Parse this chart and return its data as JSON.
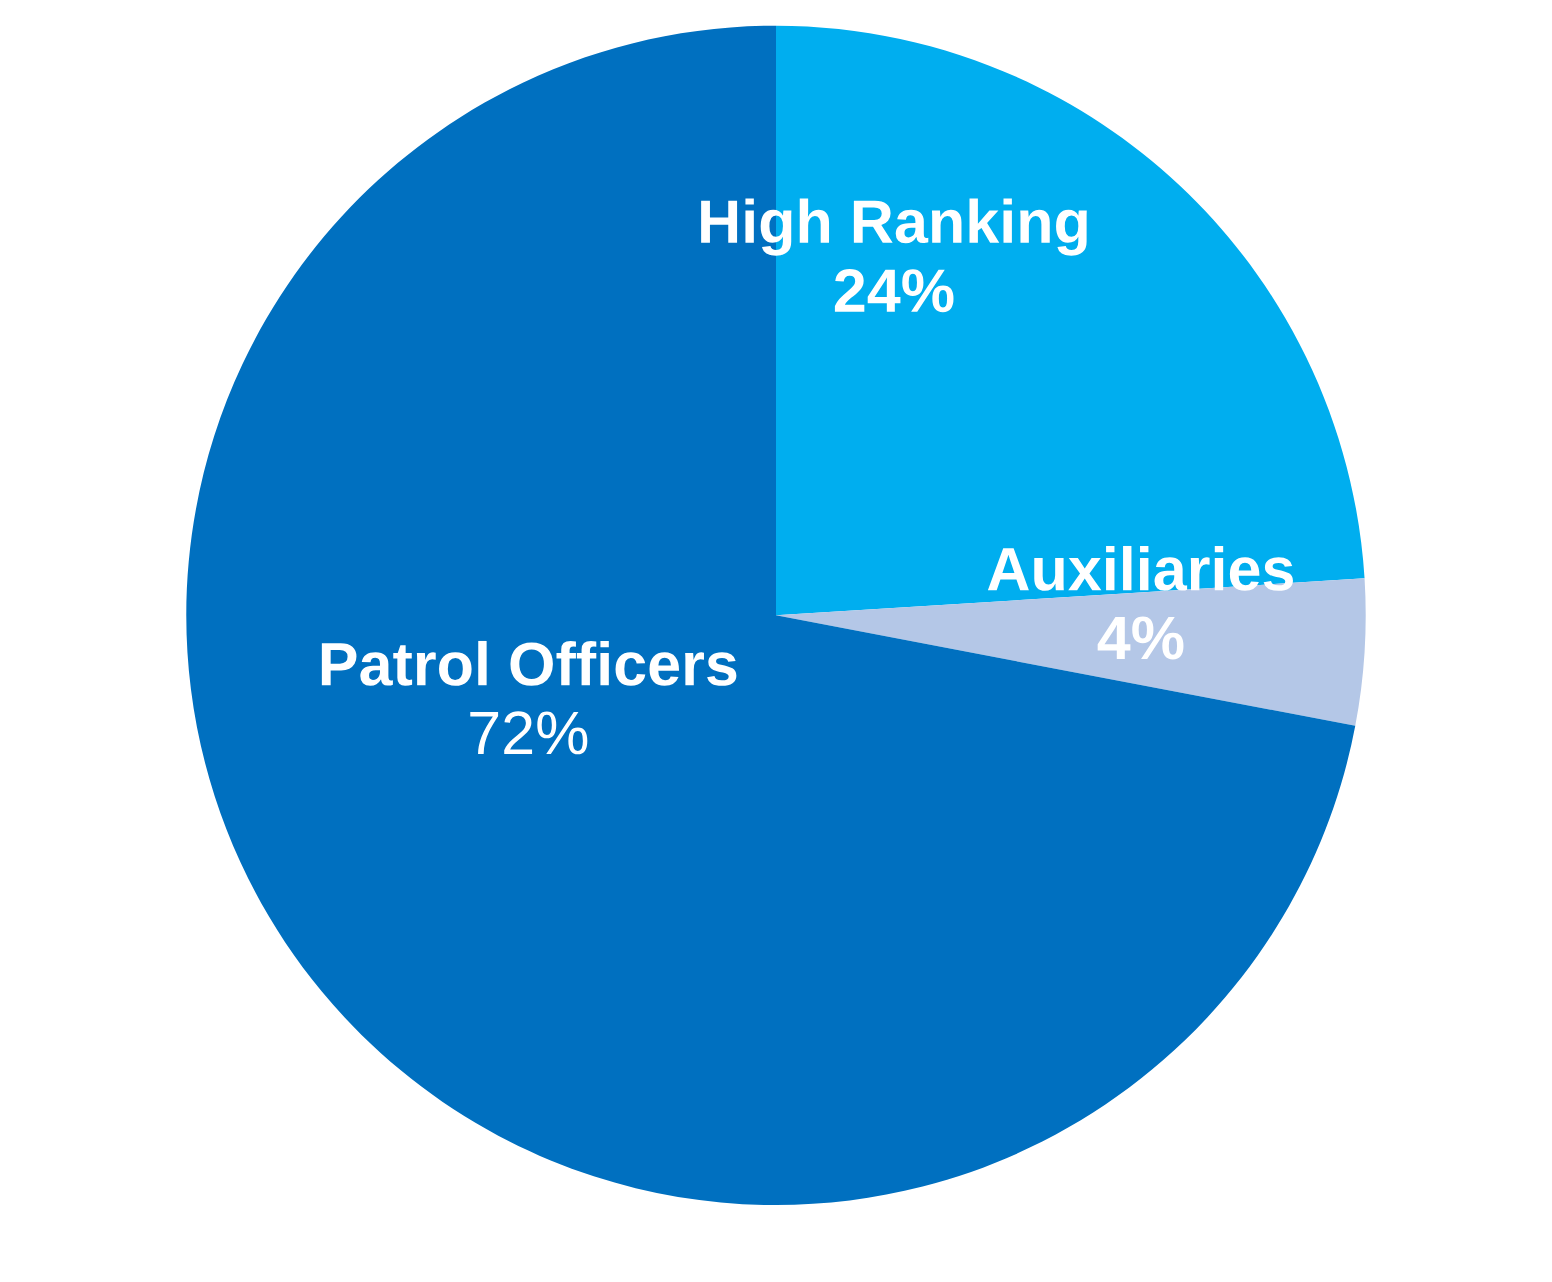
{
  "chart_data": {
    "type": "pie",
    "categories": [
      "High Ranking",
      "Auxiliaries",
      "Patrol Officers"
    ],
    "values": [
      24,
      4,
      72
    ],
    "colors": [
      "#00aeef",
      "#b4c7e7",
      "#0070c0"
    ],
    "value_labels": [
      "24%",
      "4%",
      "72%"
    ]
  }
}
